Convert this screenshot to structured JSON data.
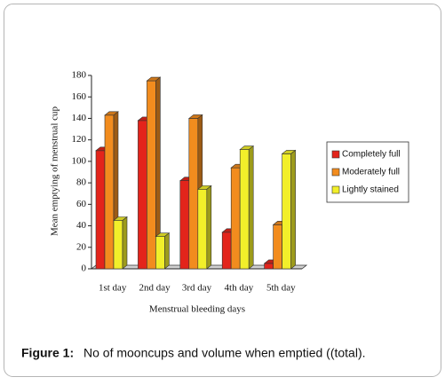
{
  "chart_data": {
    "type": "bar3d",
    "categories": [
      "1st day",
      "2nd day",
      "3rd day",
      "4th day",
      "5th day"
    ],
    "series": [
      {
        "name": "Completely full",
        "color": "#e3241b",
        "values": [
          110,
          138,
          82,
          34,
          5
        ]
      },
      {
        "name": "Moderately full",
        "color": "#f28c1e",
        "values": [
          143,
          175,
          140,
          94,
          41
        ]
      },
      {
        "name": "Lightly stained",
        "color": "#f2ef2a",
        "values": [
          45,
          30,
          74,
          111,
          107
        ]
      }
    ],
    "xlabel": "Menstrual bleeding days",
    "ylabel": "Mean emptying of menstrual cup",
    "ylim": [
      0,
      180
    ],
    "yticks": [
      0,
      20,
      40,
      60,
      80,
      100,
      120,
      140,
      160,
      180
    ],
    "legend": "right"
  },
  "caption": {
    "label": "Figure 1:",
    "text": "No of mooncups and volume when emptied ((total)."
  }
}
